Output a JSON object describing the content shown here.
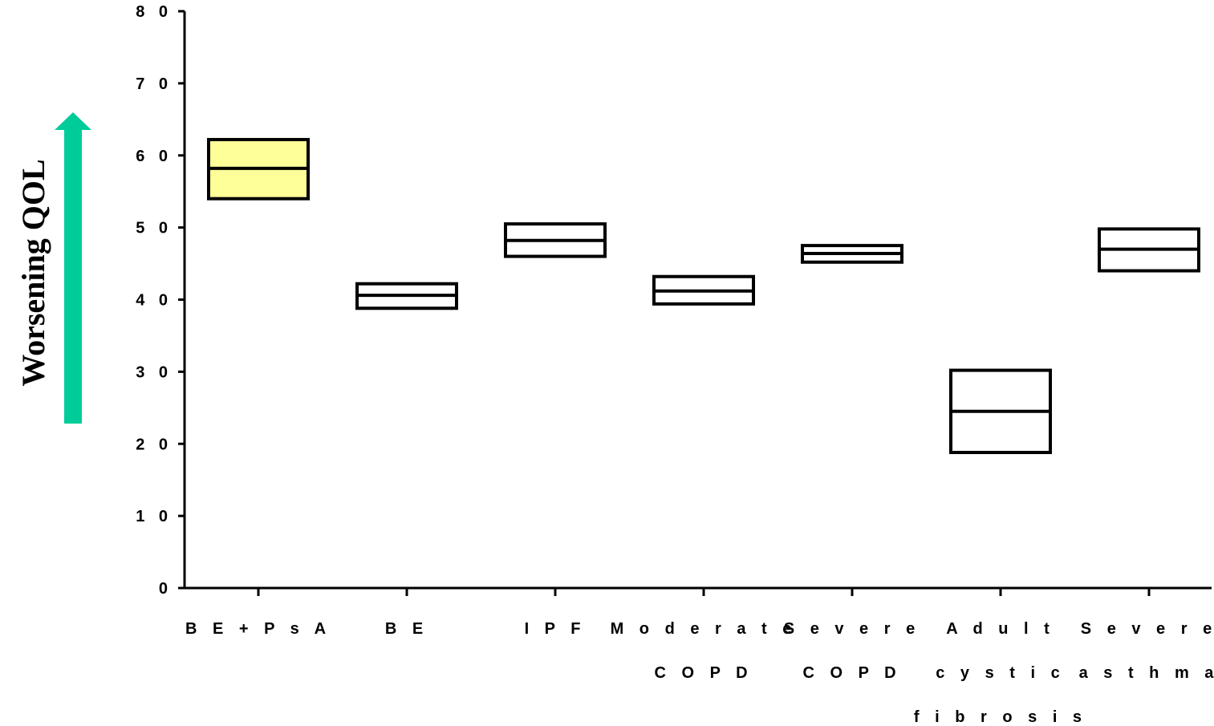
{
  "chart_data": {
    "type": "box",
    "ylabel": "Worsening QOL",
    "ylim": [
      0,
      80
    ],
    "yticks": [
      0,
      10,
      20,
      30,
      40,
      50,
      60,
      70,
      80
    ],
    "ytick_labels": [
      "0",
      "1 0",
      "2 0",
      "3 0",
      "4 0",
      "5 0",
      "6 0",
      "7 0",
      "8 0"
    ],
    "categories": [
      {
        "lines": [
          "B E + P s A"
        ],
        "low": 54,
        "mid": 58.2,
        "high": 62.2,
        "fill": "#ffff99"
      },
      {
        "lines": [
          "B E"
        ],
        "low": 38.8,
        "mid": 40.6,
        "high": 42.2,
        "fill": "#ffffff"
      },
      {
        "lines": [
          "I P F"
        ],
        "low": 46,
        "mid": 48.2,
        "high": 50.5,
        "fill": "#ffffff"
      },
      {
        "lines": [
          "M o d e r a t e",
          "C O P D"
        ],
        "low": 39.4,
        "mid": 41.2,
        "high": 43.2,
        "fill": "#ffffff"
      },
      {
        "lines": [
          "S e v e r e",
          "C O P D"
        ],
        "low": 45.2,
        "mid": 46.4,
        "high": 47.5,
        "fill": "#ffffff"
      },
      {
        "lines": [
          "A d u l t",
          "c y s t i c",
          "f i b r o s i s"
        ],
        "low": 18.8,
        "mid": 24.5,
        "high": 30.2,
        "fill": "#ffffff"
      },
      {
        "lines": [
          "S e v e r e",
          "a s t h m a"
        ],
        "low": 44,
        "mid": 47,
        "high": 49.8,
        "fill": "#ffffff"
      }
    ],
    "arrow_color": "#00cc99",
    "box_stroke": "#000000"
  }
}
